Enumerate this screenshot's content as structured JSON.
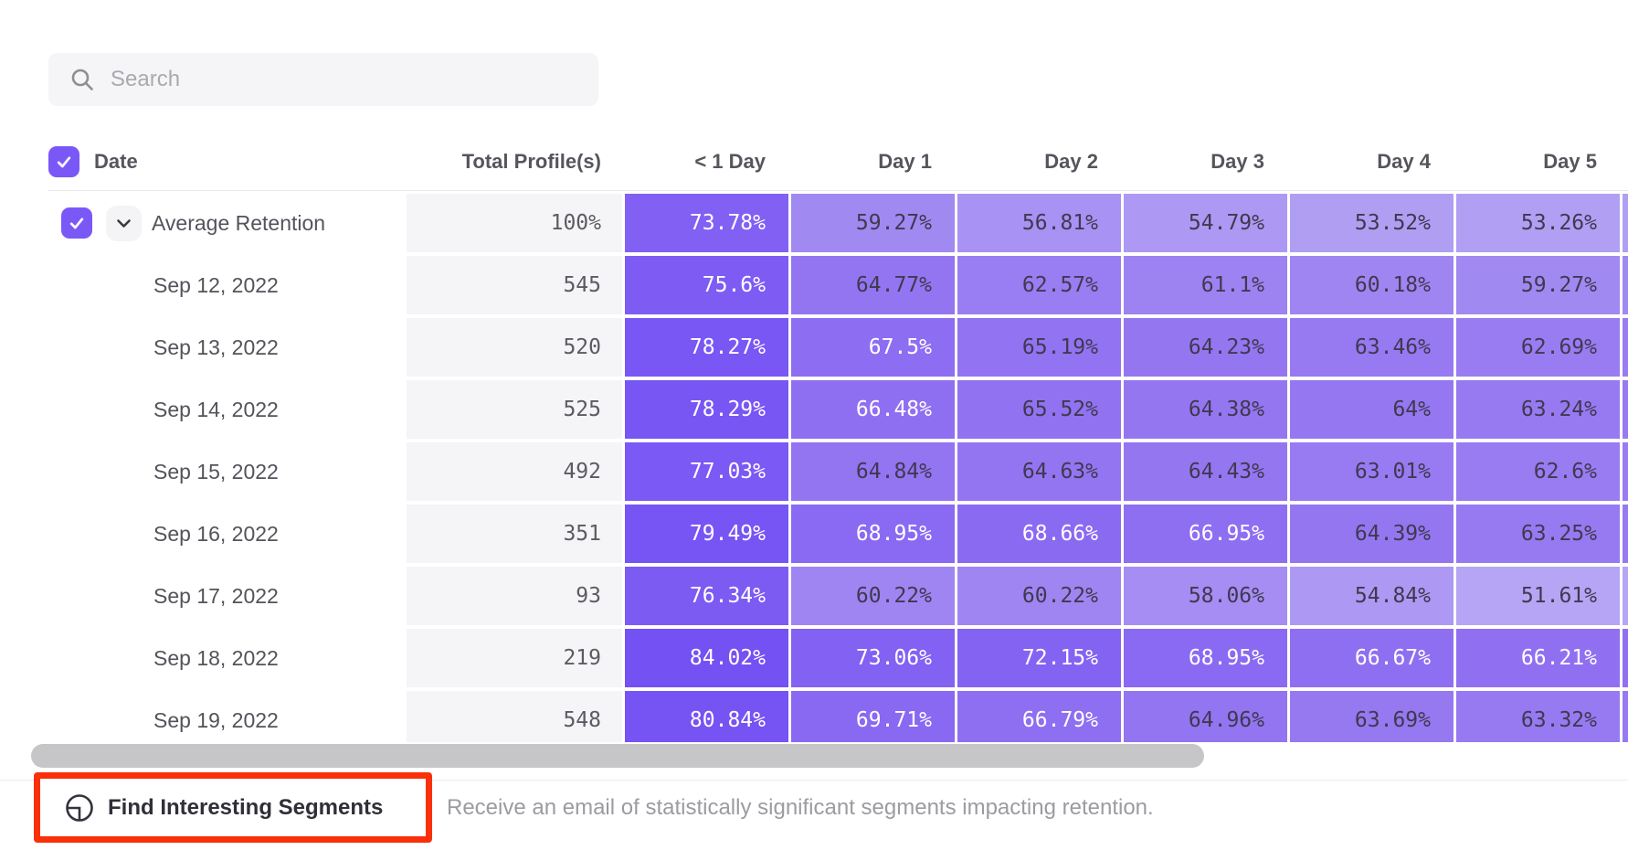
{
  "search": {
    "placeholder": "Search"
  },
  "table": {
    "date_header": "Date",
    "columns": [
      "Total Profile(s)",
      "< 1 Day",
      "Day 1",
      "Day 2",
      "Day 3",
      "Day 4",
      "Day 5"
    ],
    "average_row": {
      "label": "Average Retention",
      "total": "100%",
      "cells": [
        "73.78%",
        "59.27%",
        "56.81%",
        "54.79%",
        "53.52%",
        "53.26%"
      ]
    },
    "rows": [
      {
        "label": "Sep 12, 2022",
        "total": "545",
        "cells": [
          "75.6%",
          "64.77%",
          "62.57%",
          "61.1%",
          "60.18%",
          "59.27%"
        ]
      },
      {
        "label": "Sep 13, 2022",
        "total": "520",
        "cells": [
          "78.27%",
          "67.5%",
          "65.19%",
          "64.23%",
          "63.46%",
          "62.69%"
        ]
      },
      {
        "label": "Sep 14, 2022",
        "total": "525",
        "cells": [
          "78.29%",
          "66.48%",
          "65.52%",
          "64.38%",
          "64%",
          "63.24%"
        ]
      },
      {
        "label": "Sep 15, 2022",
        "total": "492",
        "cells": [
          "77.03%",
          "64.84%",
          "64.63%",
          "64.43%",
          "63.01%",
          "62.6%"
        ]
      },
      {
        "label": "Sep 16, 2022",
        "total": "351",
        "cells": [
          "79.49%",
          "68.95%",
          "68.66%",
          "66.95%",
          "64.39%",
          "63.25%"
        ]
      },
      {
        "label": "Sep 17, 2022",
        "total": "93",
        "cells": [
          "76.34%",
          "60.22%",
          "60.22%",
          "58.06%",
          "54.84%",
          "51.61%"
        ]
      },
      {
        "label": "Sep 18, 2022",
        "total": "219",
        "cells": [
          "84.02%",
          "73.06%",
          "72.15%",
          "68.95%",
          "66.67%",
          "66.21%"
        ]
      },
      {
        "label": "Sep 19, 2022",
        "total": "548",
        "cells": [
          "80.84%",
          "69.71%",
          "66.79%",
          "64.96%",
          "63.69%",
          "63.32%"
        ]
      }
    ]
  },
  "heatmap": {
    "anchors": [
      {
        "value": 51,
        "color": "#B7A7F4"
      },
      {
        "value": 66,
        "color": "#9070F1"
      },
      {
        "value": 79,
        "color": "#7755F4"
      },
      {
        "value": 85,
        "color": "#7350F2"
      }
    ],
    "white_text_threshold": 66,
    "white_text_color": "#FFFFFF",
    "dark_text_color": "#3F3950"
  },
  "footer": {
    "button_label": "Find Interesting Segments",
    "description": "Receive an email of statistically significant segments impacting retention."
  },
  "colors": {
    "accent_purple": "#7A58F8",
    "search_bg": "#F5F4F6",
    "total_column_bg": "#F5F4F6",
    "annotation_red": "#F93009",
    "scrollbar_thumb": "#C6C6C8",
    "header_text": "#55555D",
    "muted_text": "#9B9BA1"
  }
}
